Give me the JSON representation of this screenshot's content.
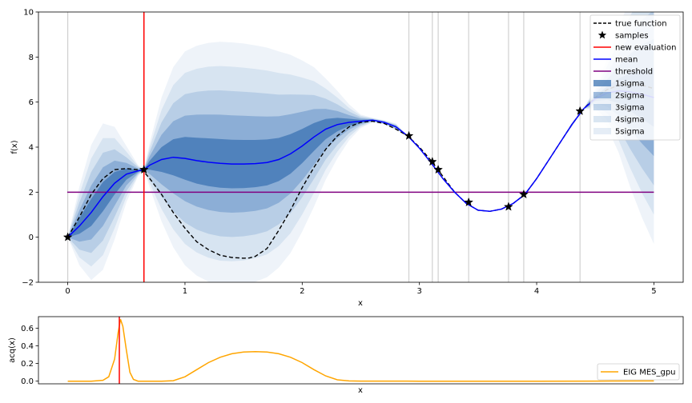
{
  "chart_data": [
    {
      "type": "line",
      "xlabel": "x",
      "ylabel": "f(x)",
      "xlim": [
        -0.25,
        5.25
      ],
      "ylim": [
        -2,
        10
      ],
      "xticks": [
        0,
        1,
        2,
        3,
        4,
        5
      ],
      "yticks": [
        -2,
        0,
        2,
        4,
        6,
        8,
        10
      ],
      "grid": false,
      "legend_placement": "top-right",
      "legend": [
        {
          "label": "true function",
          "kind": "dashed-line",
          "color": "#000000"
        },
        {
          "label": "samples",
          "kind": "star",
          "color": "#000000"
        },
        {
          "label": "new evaluation",
          "kind": "line",
          "color": "#ff0000"
        },
        {
          "label": "mean",
          "kind": "line",
          "color": "#0000ff"
        },
        {
          "label": "threshold",
          "kind": "line",
          "color": "#800080"
        },
        {
          "label": "1sigma",
          "kind": "patch",
          "color": "#1f5fa8",
          "opacity": 0.55
        },
        {
          "label": "2sigma",
          "kind": "patch",
          "color": "#4a7fbf",
          "opacity": 0.4
        },
        {
          "label": "3sigma",
          "kind": "patch",
          "color": "#6f9ccc",
          "opacity": 0.3
        },
        {
          "label": "4sigma",
          "kind": "patch",
          "color": "#94b6da",
          "opacity": 0.25
        },
        {
          "label": "5sigma",
          "kind": "patch",
          "color": "#a9c4e2",
          "opacity": 0.2
        }
      ],
      "true_function": {
        "x": [
          0,
          0.1,
          0.2,
          0.3,
          0.4,
          0.5,
          0.6,
          0.65,
          0.7,
          0.8,
          0.9,
          1.0,
          1.1,
          1.2,
          1.3,
          1.4,
          1.5,
          1.55,
          1.6,
          1.7,
          1.8,
          1.9,
          2.0,
          2.1,
          2.2,
          2.3,
          2.4,
          2.5,
          2.6,
          2.7,
          2.8,
          2.9,
          3.0,
          3.1,
          3.2,
          3.3,
          3.4,
          3.5,
          3.6,
          3.7,
          3.8,
          3.9,
          4.0,
          4.1,
          4.2,
          4.3,
          4.4,
          4.5,
          4.6,
          4.7,
          4.8,
          4.9,
          5.0
        ],
        "y": [
          0,
          0.9,
          1.9,
          2.6,
          3.0,
          3.05,
          3.0,
          2.9,
          2.6,
          1.9,
          1.1,
          0.4,
          -0.2,
          -0.55,
          -0.8,
          -0.9,
          -0.93,
          -0.92,
          -0.85,
          -0.5,
          0.3,
          1.2,
          2.2,
          3.1,
          3.9,
          4.5,
          4.9,
          5.1,
          5.15,
          5.05,
          4.8,
          4.5,
          4.0,
          3.4,
          2.7,
          2.0,
          1.5,
          1.2,
          1.15,
          1.25,
          1.5,
          1.9,
          2.6,
          3.4,
          4.2,
          5.0,
          5.7,
          6.2,
          6.55,
          6.75,
          6.8,
          6.75,
          6.6
        ]
      },
      "mean": {
        "x": [
          0,
          0.1,
          0.2,
          0.3,
          0.4,
          0.5,
          0.6,
          0.65,
          0.7,
          0.8,
          0.9,
          1.0,
          1.1,
          1.2,
          1.3,
          1.4,
          1.5,
          1.6,
          1.7,
          1.8,
          1.9,
          2.0,
          2.1,
          2.2,
          2.3,
          2.4,
          2.5,
          2.6,
          2.7,
          2.8,
          2.9,
          3.0,
          3.1,
          3.2,
          3.3,
          3.4,
          3.5,
          3.6,
          3.7,
          3.8,
          3.9,
          4.0,
          4.1,
          4.2,
          4.3,
          4.4,
          4.5,
          4.6,
          4.7,
          4.8,
          4.9,
          5.0
        ],
        "y": [
          0,
          0.5,
          1.1,
          1.8,
          2.4,
          2.8,
          2.95,
          3.0,
          3.2,
          3.45,
          3.55,
          3.5,
          3.4,
          3.33,
          3.28,
          3.25,
          3.25,
          3.27,
          3.32,
          3.45,
          3.7,
          4.05,
          4.45,
          4.8,
          5.0,
          5.1,
          5.15,
          5.2,
          5.1,
          4.9,
          4.5,
          3.95,
          3.3,
          2.6,
          2.0,
          1.5,
          1.2,
          1.15,
          1.25,
          1.5,
          1.9,
          2.6,
          3.4,
          4.2,
          5.0,
          5.7,
          6.15,
          6.4,
          6.5,
          6.45,
          6.35,
          6.2
        ]
      },
      "sigma": {
        "x": [
          0,
          0.1,
          0.2,
          0.3,
          0.4,
          0.5,
          0.6,
          0.65,
          0.7,
          0.8,
          0.9,
          1.0,
          1.1,
          1.2,
          1.3,
          1.4,
          1.5,
          1.6,
          1.7,
          1.8,
          1.9,
          2.0,
          2.1,
          2.2,
          2.3,
          2.4,
          2.5,
          2.6,
          2.7,
          2.8,
          2.9,
          3.0,
          3.1,
          3.2,
          3.3,
          3.4,
          3.5,
          3.6,
          3.7,
          3.8,
          3.9,
          4.0,
          4.1,
          4.2,
          4.3,
          4.4,
          4.5,
          4.6,
          4.7,
          4.8,
          4.9,
          5.0
        ],
        "y": [
          0,
          0.35,
          0.6,
          0.65,
          0.5,
          0.25,
          0.05,
          0,
          0.2,
          0.55,
          0.8,
          0.95,
          1.02,
          1.06,
          1.08,
          1.08,
          1.07,
          1.05,
          1.02,
          0.96,
          0.88,
          0.76,
          0.62,
          0.45,
          0.3,
          0.16,
          0.06,
          0.02,
          0.02,
          0.03,
          0,
          0,
          0,
          0,
          0,
          0,
          0,
          0,
          0,
          0,
          0,
          0,
          0,
          0,
          0.02,
          0,
          0.1,
          0.3,
          0.55,
          0.85,
          1.1,
          1.3
        ]
      },
      "samples": {
        "x": [
          0,
          0.65,
          2.91,
          3.11,
          3.16,
          3.42,
          3.76,
          3.89,
          4.37
        ],
        "y": [
          0,
          3.0,
          4.5,
          3.35,
          3.0,
          1.55,
          1.35,
          1.9,
          5.6
        ]
      },
      "new_evaluation_x": 0.65,
      "threshold_y": 2,
      "sample_guide_lines_x": [
        0,
        2.91,
        3.11,
        3.16,
        3.42,
        3.76,
        3.89,
        4.37
      ]
    },
    {
      "type": "line",
      "xlabel": "x",
      "ylabel": "acq(x)",
      "xlim": [
        -0.25,
        5.25
      ],
      "ylim": [
        -0.03,
        0.73
      ],
      "yticks": [
        0.0,
        0.2,
        0.4,
        0.6
      ],
      "ytick_labels": [
        "0.0",
        "0.2",
        "0.4",
        "0.6"
      ],
      "legend_placement": "lower-right",
      "series": [
        {
          "name": "EIG MES_gpu",
          "color": "#ffa500",
          "x": [
            0,
            0.2,
            0.3,
            0.35,
            0.4,
            0.43,
            0.45,
            0.47,
            0.5,
            0.53,
            0.56,
            0.6,
            0.7,
            0.8,
            0.9,
            1.0,
            1.1,
            1.2,
            1.3,
            1.4,
            1.5,
            1.6,
            1.7,
            1.8,
            1.9,
            2.0,
            2.1,
            2.2,
            2.3,
            2.4,
            2.5,
            3.0,
            3.5,
            4.0,
            4.5,
            5.0
          ],
          "y": [
            0,
            0,
            0.01,
            0.05,
            0.25,
            0.55,
            0.7,
            0.62,
            0.35,
            0.1,
            0.02,
            0,
            0,
            0,
            0.005,
            0.05,
            0.13,
            0.21,
            0.27,
            0.31,
            0.33,
            0.335,
            0.33,
            0.31,
            0.27,
            0.21,
            0.13,
            0.06,
            0.015,
            0.003,
            0.001,
            0,
            0,
            0,
            0.001,
            0.003
          ]
        }
      ],
      "new_evaluation_x": 0.44
    }
  ]
}
